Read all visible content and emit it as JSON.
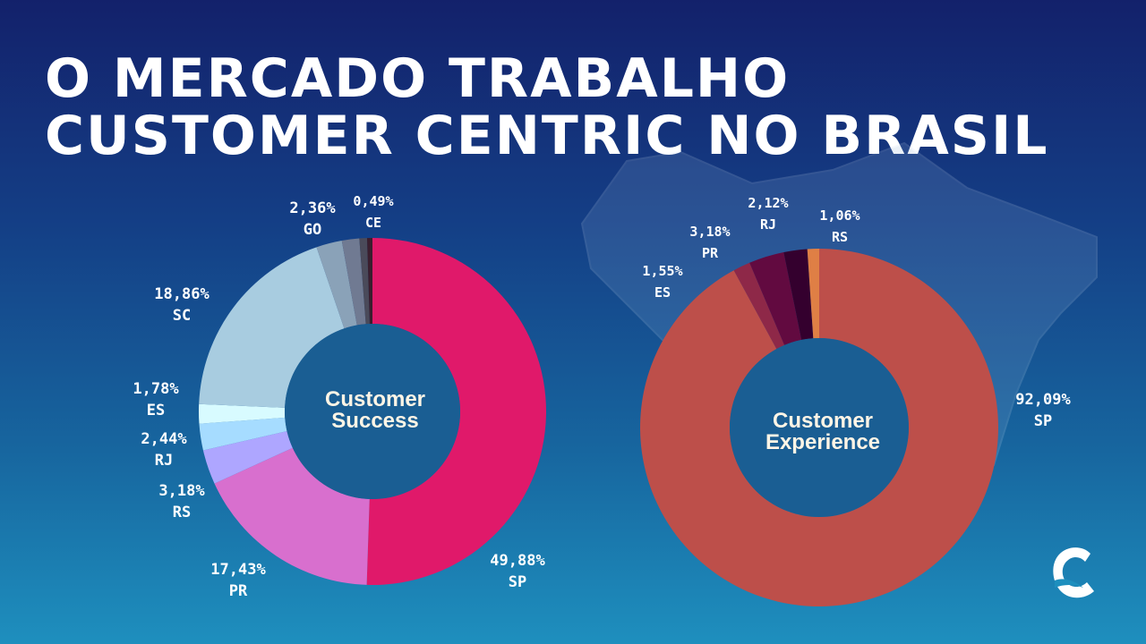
{
  "title": {
    "line1": "O MERCADO TRABALHO",
    "line2": "CUSTOMER CENTRIC NO BRASIL"
  },
  "chart_data": [
    {
      "type": "pie",
      "title": "Customer Success",
      "slices": [
        {
          "label": "SP",
          "value": 49.88,
          "text": "49,88%",
          "color": "#e0196a"
        },
        {
          "label": "PR",
          "value": 17.43,
          "text": "17,43%",
          "color": "#d86fce"
        },
        {
          "label": "RS",
          "value": 3.18,
          "text": "3,18%",
          "color": "#aea6ff"
        },
        {
          "label": "RJ",
          "value": 2.44,
          "text": "2,44%",
          "color": "#a6dcff"
        },
        {
          "label": "ES",
          "value": 1.78,
          "text": "1,78%",
          "color": "#d8fbff"
        },
        {
          "label": "SC",
          "value": 18.86,
          "text": "18,86%",
          "color": "#a8cce0"
        },
        {
          "label": "GO",
          "value": 2.36,
          "text": "2,36%",
          "color": "#8aa2b8"
        },
        {
          "label": "",
          "value": 1.6,
          "text": "",
          "color": "#707a92"
        },
        {
          "label": "",
          "value": 0.7,
          "text": "",
          "color": "#4a4a5a"
        },
        {
          "label": "CE",
          "value": 0.49,
          "text": "0,49%",
          "color": "#3a1e2e"
        }
      ]
    },
    {
      "type": "pie",
      "title": "Customer Experience",
      "slices": [
        {
          "label": "SP",
          "value": 92.09,
          "text": "92,09%",
          "color": "#bd4f4a"
        },
        {
          "label": "ES",
          "value": 1.55,
          "text": "1,55%",
          "color": "#8e2848"
        },
        {
          "label": "PR",
          "value": 3.18,
          "text": "3,18%",
          "color": "#620a40"
        },
        {
          "label": "RJ",
          "value": 2.12,
          "text": "2,12%",
          "color": "#34002e"
        },
        {
          "label": "RS",
          "value": 1.06,
          "text": "1,06%",
          "color": "#df7f45"
        }
      ]
    }
  ],
  "colors": {
    "hole": "#1a5e93",
    "label_text": "#ffffff",
    "center_text": "#fff5e6"
  },
  "logo": {
    "icon": "c-logo-icon"
  }
}
